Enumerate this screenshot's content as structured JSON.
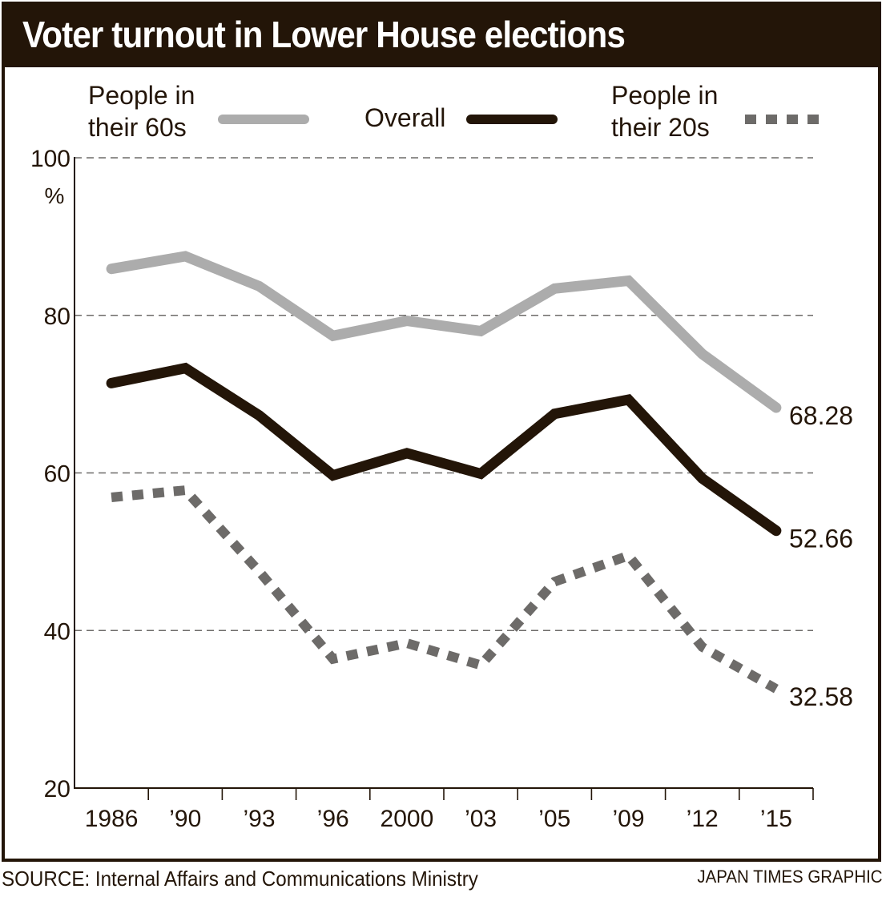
{
  "chart_data": {
    "type": "line",
    "title": "Voter turnout in Lower House elections",
    "xlabel": "",
    "ylabel": "%",
    "ylim": [
      20,
      100
    ],
    "yticks": [
      20,
      40,
      60,
      80,
      100
    ],
    "ytick_labels": [
      "20",
      "40",
      "60",
      "80",
      "100"
    ],
    "y_unit_label": "%",
    "grid": true,
    "categories": [
      "1986",
      "’90",
      "’93",
      "’96",
      "2000",
      "’03",
      "’05",
      "’09",
      "’12",
      "’15"
    ],
    "series": [
      {
        "name": "People in their 60s",
        "legend_lines": [
          "People in",
          "their 60s"
        ],
        "color": "#acacac",
        "style": "solid",
        "values": [
          85.9,
          87.5,
          83.7,
          77.4,
          79.3,
          78.0,
          83.4,
          84.4,
          75.1,
          68.28
        ],
        "end_label": "68.28"
      },
      {
        "name": "Overall",
        "legend_lines": [
          "Overall"
        ],
        "color": "#231508",
        "style": "solid",
        "values": [
          71.4,
          73.3,
          67.3,
          59.7,
          62.5,
          59.9,
          67.5,
          69.3,
          59.3,
          52.66
        ],
        "end_label": "52.66"
      },
      {
        "name": "People in their 20s",
        "legend_lines": [
          "People in",
          "their 20s"
        ],
        "color": "#6d6b69",
        "style": "dotted",
        "values": [
          56.9,
          57.8,
          47.5,
          36.4,
          38.4,
          35.6,
          46.2,
          49.5,
          37.9,
          32.58
        ],
        "end_label": "32.58"
      }
    ],
    "legend_position": "top"
  },
  "footer": {
    "source": "SOURCE: Internal Affairs and Communications Ministry",
    "credit": "JAPAN TIMES GRAPHIC"
  },
  "colors": {
    "frame": "#231508",
    "gridline": "#6d6b69"
  }
}
